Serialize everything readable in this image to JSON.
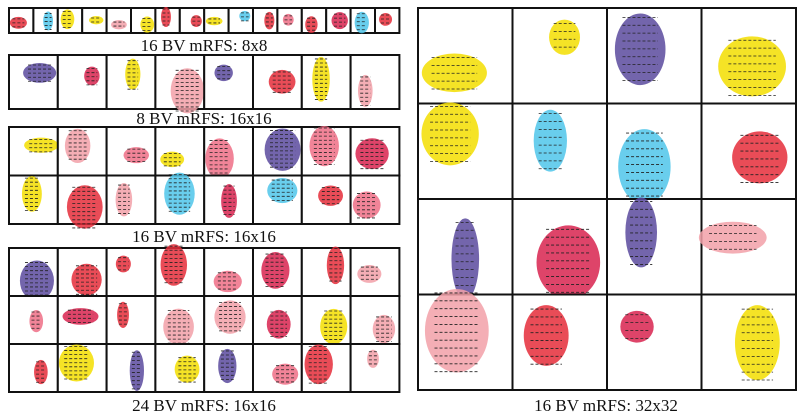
{
  "panels": [
    {
      "caption": "16 BV mRFS: 8x8"
    },
    {
      "caption": "8 BV mRFS: 16x16"
    },
    {
      "caption": "16 BV mRFS: 16x16"
    },
    {
      "caption": "24 BV mRFS: 16x16"
    },
    {
      "caption": "16 BV mRFS: 32x32"
    }
  ]
}
